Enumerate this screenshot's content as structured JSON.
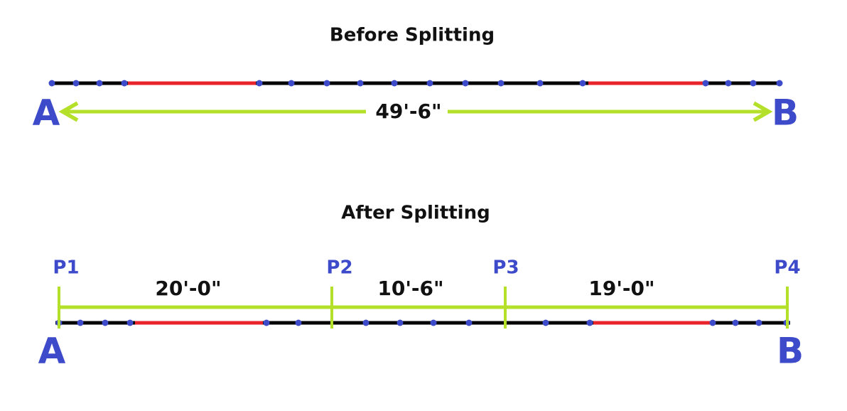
{
  "before": {
    "title": "Before Splitting",
    "start_label": "A",
    "end_label": "B",
    "length": "49'-6\""
  },
  "after": {
    "title": "After Splitting",
    "points": [
      "P1",
      "P2",
      "P3",
      "P4"
    ],
    "segments": [
      "20'-0\"",
      "10'-6\"",
      "19'-0\""
    ],
    "start_label": "A",
    "end_label": "B"
  }
}
